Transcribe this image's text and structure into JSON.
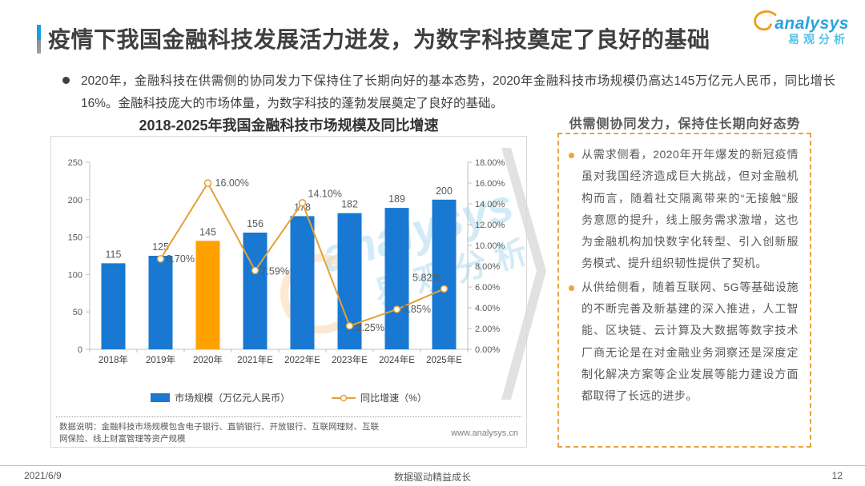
{
  "slide": {
    "title": "疫情下我国金融科技发展活力迸发，为数字科技奠定了良好的基础",
    "logo": {
      "brand": "analysys",
      "brand_cn": "易观分析"
    },
    "intro_bullet": "2020年，金融科技在供需侧的协同发力下保持住了长期向好的基本态势，2020年金融科技市场规模仍高达145万亿元人民币，同比增长16%。金融科技庞大的市场体量，为数字科技的蓬勃发展奠定了良好的基础。",
    "footer": {
      "date": "2021/6/9",
      "center": "数据驱动精益成长",
      "page": "12"
    }
  },
  "chart_data": {
    "type": "bar+line",
    "title": "2018-2025年我国金融科技市场规模及同比增速",
    "categories": [
      "2018年",
      "2019年",
      "2020年",
      "2021年E",
      "2022年E",
      "2023年E",
      "2024年E",
      "2025年E"
    ],
    "series": [
      {
        "name": "市场规模（万亿元人民币）",
        "type": "bar",
        "values": [
          115,
          125,
          145,
          156,
          178,
          182,
          189,
          200
        ],
        "color": "#1878D2",
        "highlight_index": 2,
        "highlight_color": "#FFA200"
      },
      {
        "name": "同比增速（%）",
        "type": "line",
        "values": [
          null,
          8.7,
          16.0,
          7.59,
          14.1,
          2.25,
          3.85,
          5.82
        ],
        "labels": [
          null,
          "8.70%",
          "16.00%",
          "7.59%",
          "14.10%",
          "2.25%",
          "3.85%",
          "5.82%"
        ],
        "color": "#E2A139"
      }
    ],
    "left_axis": {
      "min": 0,
      "max": 250,
      "ticks": [
        0,
        50,
        100,
        150,
        200,
        250
      ]
    },
    "right_axis": {
      "min": 0,
      "max": 18,
      "ticks": [
        "0.00%",
        "2.00%",
        "4.00%",
        "6.00%",
        "8.00%",
        "10.00%",
        "12.00%",
        "14.00%",
        "16.00%",
        "18.00%"
      ]
    },
    "grid": false,
    "legend_position": "bottom",
    "notes": "数据说明：金融科技市场规模包含电子银行、直销银行、开放银行、互联网理财、互联网保险、线上财富管理等资产规模",
    "source_url": "www.analysys.cn"
  },
  "panel": {
    "title": "供需侧协同发力，保持住长期向好态势",
    "bullets": [
      "从需求侧看，2020年开年爆发的新冠疫情虽对我国经济造成巨大挑战，但对金融机构而言，随着社交隔离带来的“无接触”服务意愿的提升，线上服务需求激增，这也为金融机构加快数字化转型、引入创新服务模式、提升组织韧性提供了契机。",
      "从供给侧看，随着互联网、5G等基础设施的不断完善及新基建的深入推进，人工智能、区块链、云计算及大数据等数字技术厂商无论是在对金融业务洞察还是深度定制化解决方案等企业发展等能力建设方面都取得了长远的进步。"
    ]
  },
  "watermark": {
    "text1": "analysys",
    "text2": "易观分析"
  }
}
